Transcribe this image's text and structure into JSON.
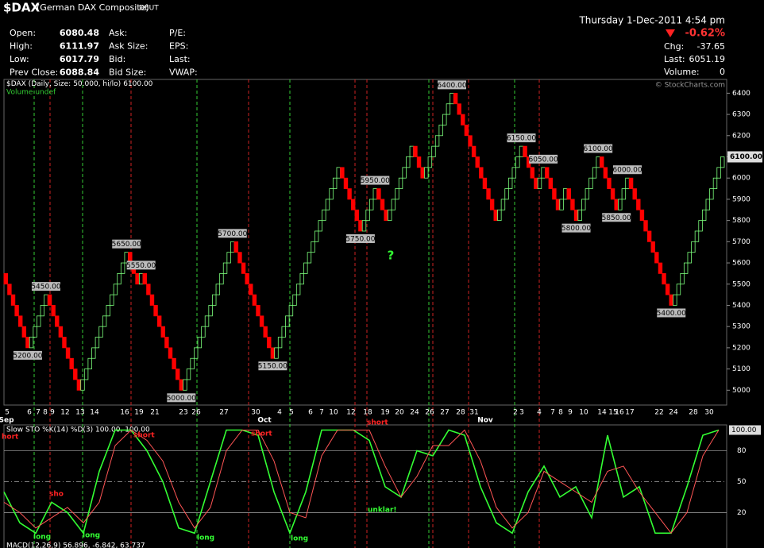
{
  "header": {
    "symbol": "$DAX",
    "name": "(German DAX Composite)",
    "exchange": "DEUT",
    "quote": [
      [
        "Open:",
        "6080.48",
        "Ask:",
        "P/E:"
      ],
      [
        "High:",
        "6111.97",
        "Ask Size:",
        "EPS:"
      ],
      [
        "Low:",
        "6017.79",
        "Bid:",
        "Last:"
      ],
      [
        "Prev Close:",
        "6088.84",
        "Bid Size:",
        "VWAP:"
      ]
    ],
    "datetime": "Thursday  1-Dec-2011  4:54 pm",
    "pct": "-0.62%",
    "stats": [
      [
        "Chg:",
        "-37.65"
      ],
      [
        "Last:",
        "6051.19"
      ],
      [
        "Volume:",
        "0"
      ]
    ],
    "credit": "© StockCharts.com"
  },
  "chart_data": [
    {
      "type": "renko",
      "legend_parts": [
        "$DAX (Daily, Size:",
        ", hi/lo)"
      ],
      "brick_size": {
        "value": 50,
        "label": "50.000"
      },
      "last": {
        "value": 6100,
        "label": "6100.00"
      },
      "volume_note": "Volume undef",
      "up_color": "#7cff7c",
      "down_color": "#ff0000",
      "swings": [
        5550,
        5200,
        5450,
        5000,
        5650,
        5500,
        5550,
        5000,
        5700,
        5150,
        6050,
        5750,
        5950,
        5800,
        6150,
        6000,
        6400,
        5800,
        6150,
        5950,
        6050,
        5850,
        5950,
        5800,
        6100,
        5850,
        6000,
        5400,
        6100
      ],
      "value_labels": [
        null,
        "5200.00",
        "5450.00",
        null,
        "5650.00",
        null,
        "5550.00",
        "5000.00",
        "5700.00",
        "5150.00",
        null,
        "5750.00",
        "5950.00",
        null,
        null,
        null,
        "6400.00",
        null,
        "6150.00",
        null,
        "6050.00",
        null,
        null,
        "5800.00",
        "6100.00",
        "5850.00",
        "6000.00",
        "5400.00",
        null
      ],
      "ylim": [
        4930,
        6465
      ],
      "yticks": [
        5000,
        5100,
        5200,
        5300,
        5400,
        5500,
        5600,
        5700,
        5800,
        5900,
        6000,
        6100,
        6200,
        6300,
        6400
      ],
      "date_labels": [
        "5",
        "6",
        "7",
        "8",
        "9",
        "12",
        "13",
        "14",
        "16",
        "19",
        "21",
        "23",
        "26",
        "27",
        "30",
        "4",
        "5",
        "6",
        "7",
        "10",
        "12",
        "18",
        "19",
        "20",
        "24",
        "26",
        "27",
        "28",
        "31",
        "2",
        "3",
        "4",
        "7",
        "8",
        "9",
        "10",
        "14",
        "15",
        "16",
        "17",
        "22",
        "24",
        "28",
        "30"
      ],
      "months": [
        "Sep",
        "Oct",
        "Nov"
      ],
      "annotations": [
        {
          "text": "?",
          "color": "#33ff33"
        }
      ]
    },
    {
      "type": "line",
      "title": "Slow STO %K(14) %D(3) 100.00, 100.00",
      "badge": {
        "value": 100,
        "label": "100.00"
      },
      "ylim": [
        -9,
        105
      ],
      "yticks": [
        20,
        50,
        80
      ],
      "series": [
        {
          "color": "#33ff33",
          "values": [
            40,
            10,
            0,
            30,
            20,
            0,
            60,
            100,
            100,
            80,
            50,
            5,
            0,
            50,
            100,
            100,
            95,
            40,
            0,
            40,
            100,
            100,
            100,
            90,
            45,
            35,
            80,
            75,
            100,
            95,
            45,
            10,
            0,
            40,
            65,
            35,
            45,
            15,
            95,
            35,
            45,
            0,
            0,
            45,
            95,
            100
          ]
        },
        {
          "color": "#ff5555",
          "values": [
            30,
            20,
            5,
            15,
            25,
            10,
            30,
            85,
            100,
            90,
            70,
            30,
            5,
            25,
            80,
            100,
            100,
            70,
            20,
            15,
            75,
            100,
            100,
            100,
            65,
            35,
            55,
            85,
            85,
            100,
            70,
            25,
            5,
            20,
            60,
            50,
            40,
            30,
            60,
            65,
            40,
            20,
            0,
            20,
            75,
            100
          ]
        }
      ],
      "annotations": [
        {
          "text": "hort",
          "color": "#ff2222"
        },
        {
          "text": "short",
          "color": "#ff2222"
        },
        {
          "text": "short",
          "color": "#ff2222"
        },
        {
          "text": "short",
          "color": "#ff2222"
        },
        {
          "text": "sho",
          "color": "#ff2222"
        },
        {
          "text": "long",
          "color": "#33ff33"
        },
        {
          "text": "long",
          "color": "#33ff33"
        },
        {
          "text": "long",
          "color": "#33ff33"
        },
        {
          "text": "long",
          "color": "#33ff33"
        },
        {
          "text": "unklar!",
          "color": "#33ff33"
        }
      ],
      "macd_title": "MACD(12,26,9) 56.896, -6.842, 63.737"
    }
  ]
}
